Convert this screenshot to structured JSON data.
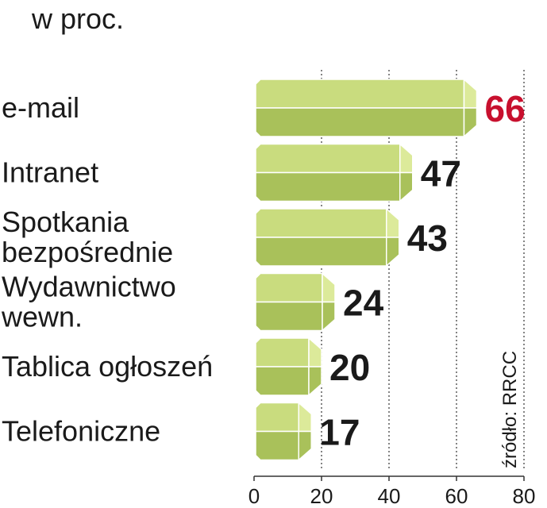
{
  "chart_data": {
    "type": "bar",
    "orientation": "horizontal",
    "unit_label": "w proc.",
    "categories": [
      "e-mail",
      "Intranet",
      "Spotkania bezpośrednie",
      "Wydawnictwo wewn.",
      "Tablica ogłoszeń",
      "Telefoniczne"
    ],
    "category_lines": [
      [
        "e-mail"
      ],
      [
        "Intranet"
      ],
      [
        "Spotkania",
        "bezpośrednie"
      ],
      [
        "Wydawnictwo",
        "wewn."
      ],
      [
        "Tablica ogłoszeń"
      ],
      [
        "Telefoniczne"
      ]
    ],
    "values": [
      66,
      47,
      43,
      24,
      20,
      17
    ],
    "value_labels": [
      "66",
      "47",
      "43",
      "24",
      "20",
      "17"
    ],
    "highlight_index": 0,
    "xlim": [
      0,
      80
    ],
    "xticks": [
      "0",
      "20",
      "40",
      "60",
      "80"
    ],
    "source": "źródło: RRCC",
    "grid": true
  },
  "colors": {
    "bar_top": "#c9dc7e",
    "bar_bottom": "#a9c15a",
    "bar_tip": "#dcea9a",
    "bar_outline": "#ffffff",
    "highlight_value": "#c8102e",
    "grid": "#333333",
    "background": "#ffffff"
  }
}
